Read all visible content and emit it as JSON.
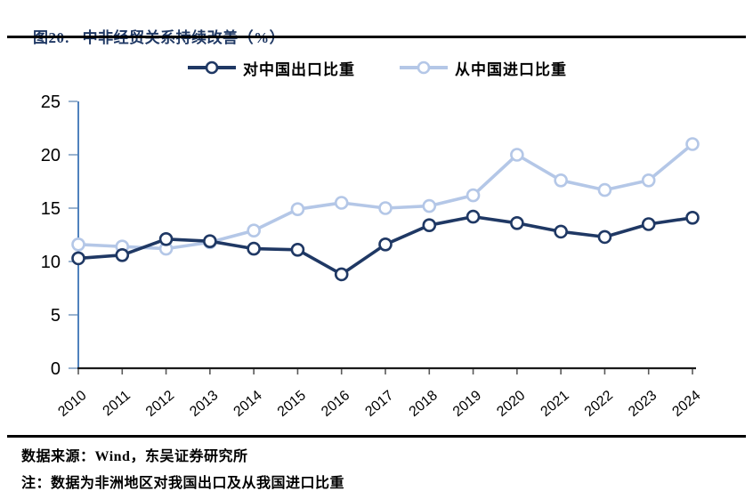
{
  "title": {
    "figure_label": "图20:",
    "text": "中非经贸关系持续改善（%）"
  },
  "legend": {
    "items": [
      {
        "label": "对中国出口比重",
        "marker": "open-circle-on-line"
      },
      {
        "label": "从中国进口比重",
        "marker": "open-circle-on-line"
      }
    ]
  },
  "colors": {
    "title": "#1f3864",
    "export_series": "#1f3864",
    "import_series": "#b4c7e7",
    "y_axis_line": "#4f81bd",
    "y_tick": "#9ab3cf",
    "x_axis_line": "#1a1a1a",
    "x_tick": "#595959",
    "axis_text": "#000000",
    "divider": "#000000"
  },
  "chart_data": {
    "type": "line",
    "title": "中非经贸关系持续改善（%）",
    "categories": [
      "2010",
      "2011",
      "2012",
      "2013",
      "2014",
      "2015",
      "2016",
      "2017",
      "2018",
      "2019",
      "2020",
      "2021",
      "2022",
      "2023",
      "2024"
    ],
    "series": [
      {
        "name": "对中国出口比重",
        "color": "#1f3864",
        "values": [
          10.3,
          10.6,
          12.1,
          11.9,
          11.2,
          11.1,
          8.8,
          11.6,
          13.4,
          14.2,
          13.6,
          12.8,
          12.3,
          13.5,
          14.1
        ]
      },
      {
        "name": "从中国进口比重",
        "color": "#b4c7e7",
        "values": [
          11.6,
          11.4,
          11.2,
          11.8,
          12.9,
          14.9,
          15.5,
          15.0,
          15.2,
          16.2,
          20.0,
          17.6,
          16.7,
          17.6,
          21.0
        ]
      }
    ],
    "xlabel": "",
    "ylabel": "",
    "ylim": [
      0,
      25
    ],
    "yticks": [
      0,
      5,
      10,
      15,
      20,
      25
    ],
    "grid": false,
    "legend_position": "top",
    "marker": "open-circle"
  },
  "footer": {
    "source": "数据来源：Wind，东吴证券研究所",
    "note": "注：数据为非洲地区对我国出口及从我国进口比重"
  }
}
